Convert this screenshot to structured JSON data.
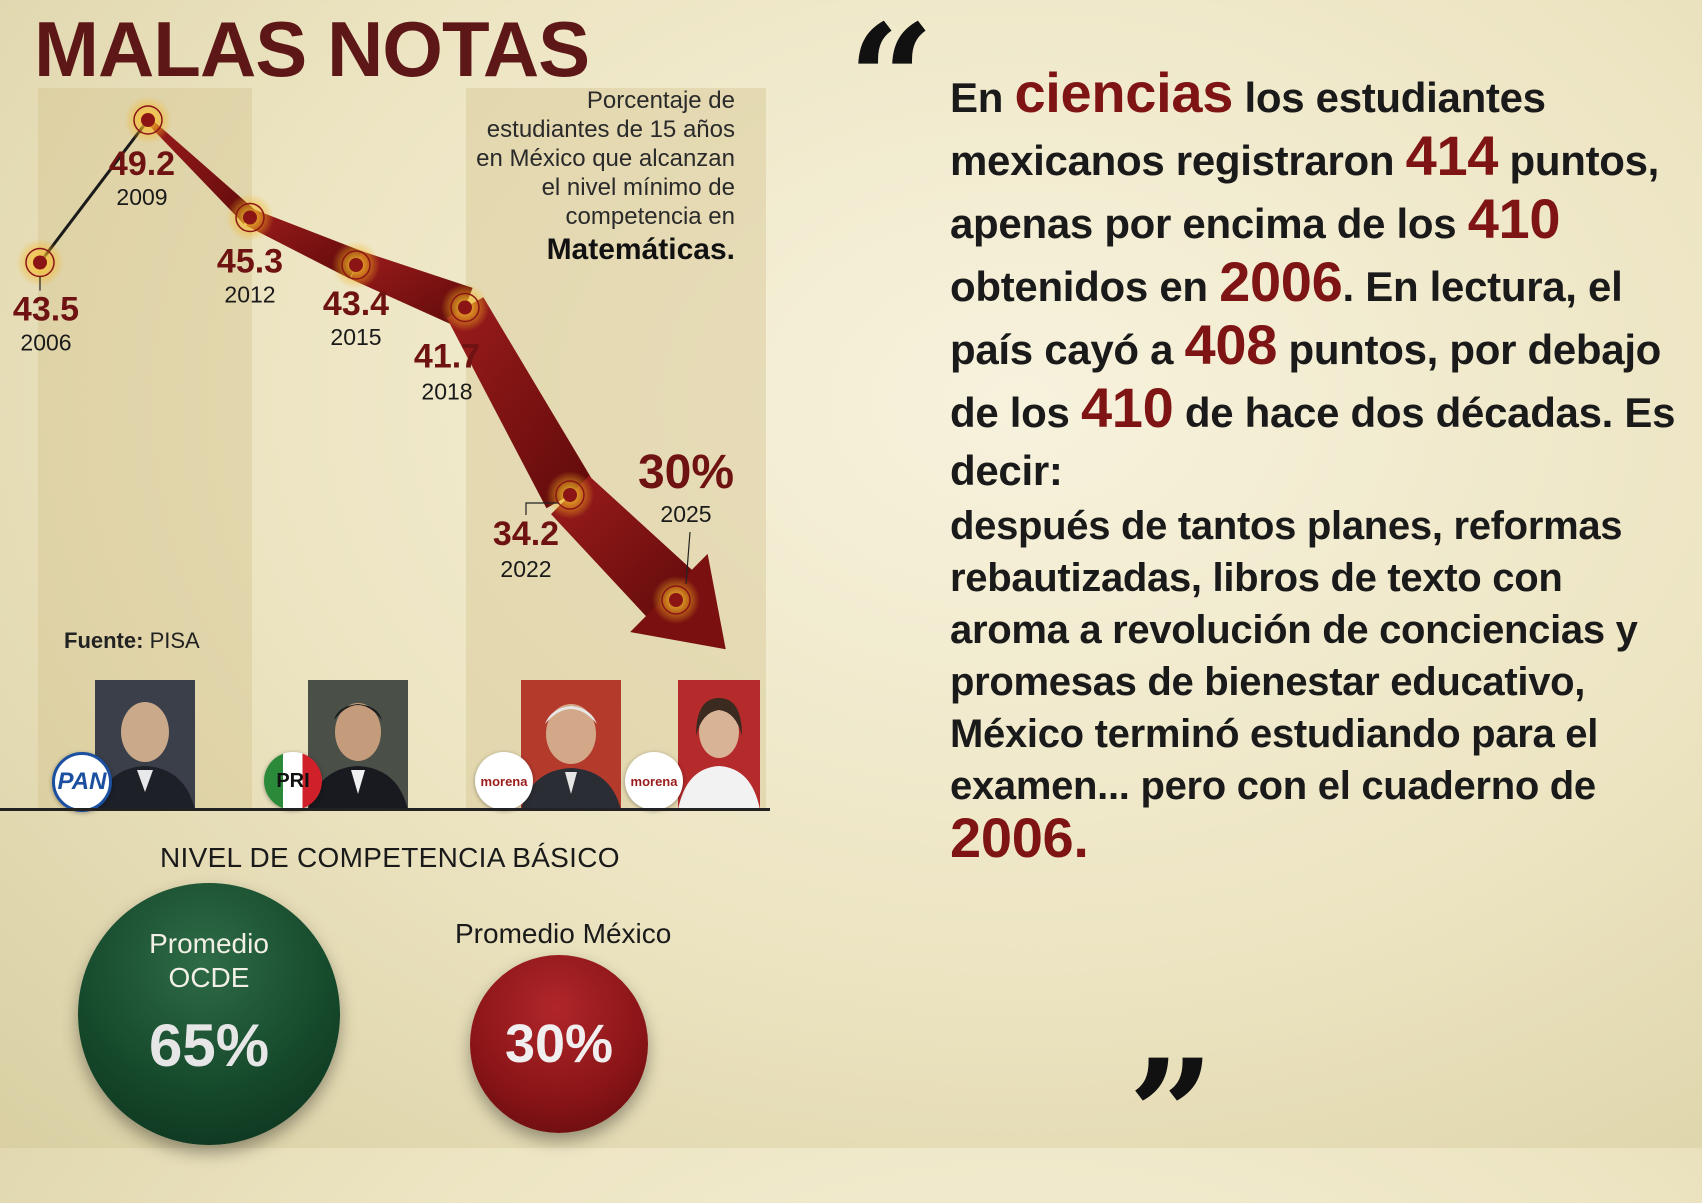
{
  "title": "MALAS NOTAS",
  "subtitle": {
    "lines": [
      "Porcentaje de",
      "estudiantes de 15 años",
      "en México que alcanzan",
      "el nivel mínimo de",
      "competencia en"
    ],
    "emphasis": "Matemáticas."
  },
  "source": {
    "label": "Fuente:",
    "value": "PISA"
  },
  "chart_data": {
    "type": "line",
    "x": [
      "2006",
      "2009",
      "2012",
      "2015",
      "2018",
      "2022",
      "2025"
    ],
    "values": [
      43.5,
      49.2,
      45.3,
      43.4,
      41.7,
      34.2,
      30
    ],
    "value_labels": [
      "43.5",
      "49.2",
      "45.3",
      "43.4",
      "41.7",
      "34.2",
      "30%"
    ],
    "highlight_color": "#8b1515",
    "line_color": "#1a1a1a"
  },
  "logos": [
    {
      "name": "PAN",
      "text": "PAN"
    },
    {
      "name": "PRI",
      "text": "PRI"
    },
    {
      "name": "morena-1",
      "text": "morena"
    },
    {
      "name": "morena-2",
      "text": "morena"
    }
  ],
  "competency": {
    "title": "NIVEL DE COMPETENCIA BÁSICO",
    "oecd": {
      "label_line1": "Promedio",
      "label_line2": "OCDE",
      "value": "65%",
      "percent": 65
    },
    "mexico": {
      "label": "Promedio México",
      "value": "30%",
      "percent": 30
    }
  },
  "quote": {
    "open_mark": "“",
    "close_mark": "”",
    "p1": "En",
    "p2": "ciencias",
    "p3": " los estudiantes mexicanos registraron ",
    "p4": "414",
    "p5": " puntos, apenas por encima de los ",
    "p6": "410",
    "p7": " obtenidos en ",
    "p8": "2006",
    "p9": ". En lectura, el país cayó a ",
    "p10": "408",
    "p11": " puntos, por debajo de los ",
    "p12": "410",
    "p13": " de hace dos décadas. Es decir:",
    "p14": "después de tantos planes, reformas rebautizadas, libros de texto con aroma a revolución de conciencias y promesas de bienestar educativo, México terminó estudiando para el examen... pero con el cuaderno de ",
    "p15": "2006."
  }
}
